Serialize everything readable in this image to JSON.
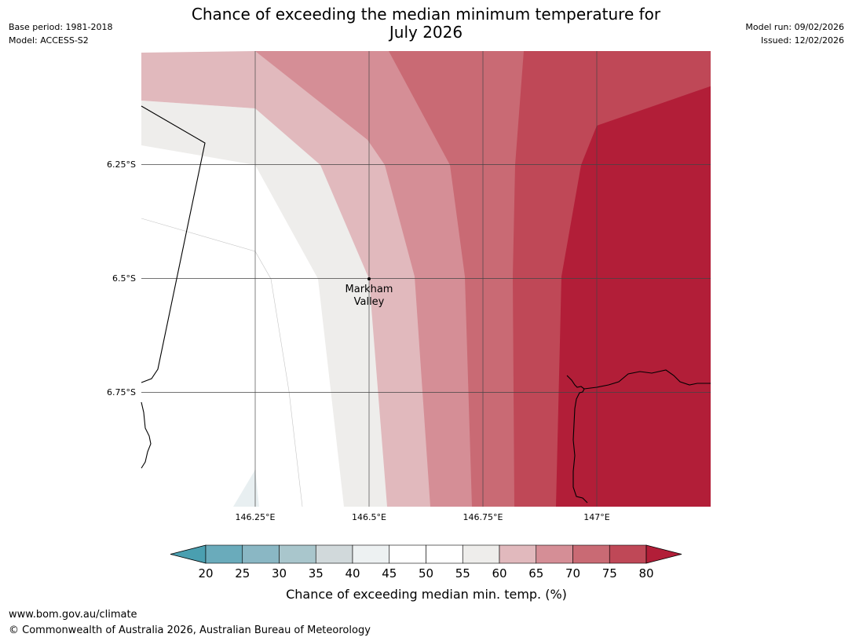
{
  "title": "Chance of exceeding the median minimum temperature for July 2026",
  "title_line1": "Chance of exceeding the median minimum temperature for",
  "title_line2": "July 2026",
  "meta_left": {
    "base_period": "Base period: 1981-2018",
    "model": "Model: ACCESS-S2"
  },
  "meta_right": {
    "model_run": "Model run: 09/02/2026",
    "issued": "Issued: 12/02/2026"
  },
  "map": {
    "lat_labels": [
      "6.25°S",
      "6.5°S",
      "6.75°S"
    ],
    "lon_labels": [
      "146.25°E",
      "146.5°E",
      "146.75°E",
      "147°E"
    ],
    "place": {
      "name": "Markham Valley",
      "line1": "Markham",
      "line2": "Valley"
    }
  },
  "colorbar": {
    "ticks": [
      "20",
      "25",
      "30",
      "35",
      "40",
      "45",
      "50",
      "55",
      "60",
      "65",
      "70",
      "75",
      "80"
    ],
    "colors": [
      "#4a9fb0",
      "#6aabbb",
      "#8ab7c4",
      "#a9c6cc",
      "#d1d9db",
      "#edf1f2",
      "#ffffff",
      "#ffffff",
      "#eeedeb",
      "#e1b9bd",
      "#d58e96",
      "#c96a74",
      "#bf4857",
      "#b21e38"
    ],
    "label": "Chance of exceeding median min. temp. (%)"
  },
  "footer": {
    "url": "www.bom.gov.au/climate",
    "copyright": "© Commonwealth of Australia 2026, Australian Bureau of Meteorology"
  }
}
